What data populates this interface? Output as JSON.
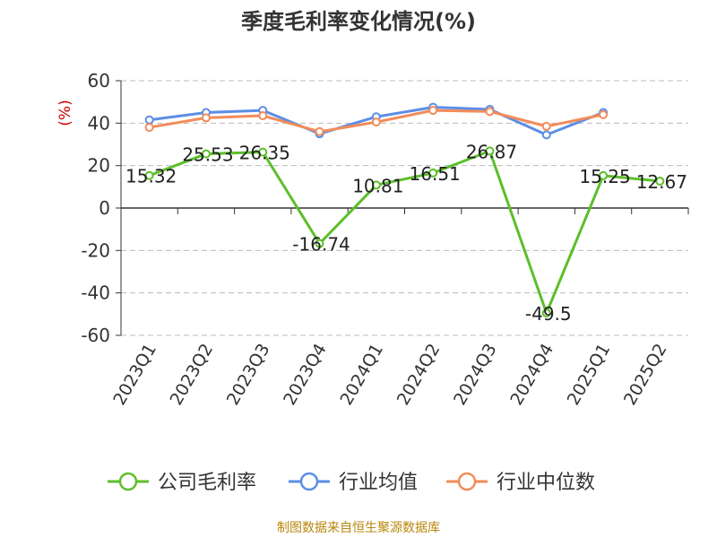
{
  "chart_data": {
    "type": "line",
    "title": "季度毛利率变化情况(%)",
    "ylabel": "(%)",
    "xlabel": "",
    "ylim": [
      -60,
      60
    ],
    "yticks": [
      -60,
      -40,
      -20,
      0,
      20,
      40,
      60
    ],
    "grid": true,
    "legend_position": "bottom",
    "categories": [
      "2023Q1",
      "2023Q2",
      "2023Q3",
      "2023Q4",
      "2024Q1",
      "2024Q2",
      "2024Q3",
      "2024Q4",
      "2025Q1",
      "2025Q2"
    ],
    "series": [
      {
        "name": "公司毛利率",
        "color": "#5cbf2a",
        "values": [
          15.32,
          25.53,
          26.35,
          -16.74,
          10.81,
          16.51,
          26.87,
          -49.5,
          15.25,
          12.67
        ],
        "labels": [
          "15.32",
          "25.53",
          "26.35",
          "-16.74",
          "10.81",
          "16.51",
          "26.87",
          "-49.5",
          "15.25",
          "12.67"
        ]
      },
      {
        "name": "行业均值",
        "color": "#5b8ee6",
        "values": [
          41.5,
          45,
          46,
          35,
          43,
          47.5,
          46.5,
          34.5,
          45,
          null
        ]
      },
      {
        "name": "行业中位数",
        "color": "#f28c5a",
        "values": [
          38,
          42.5,
          43.5,
          36,
          40.5,
          46,
          45.5,
          38.5,
          44,
          null
        ]
      }
    ]
  },
  "source_text": "制图数据来自恒生聚源数据库"
}
